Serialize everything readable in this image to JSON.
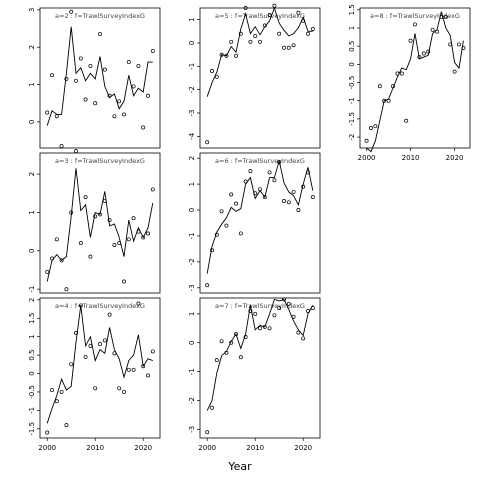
{
  "chart_data": {
    "type": "scatter",
    "xlabel": "Year",
    "x_ticks": [
      2000,
      2010,
      2020
    ],
    "panels": [
      {
        "label": "a=2 : f=TrawlSurveyIndexG",
        "yticks": [
          3,
          2,
          1,
          0
        ],
        "ylim": [
          -0.7,
          3.05
        ],
        "points_x": [
          2000,
          2001,
          2002,
          2003,
          2004,
          2005,
          2006,
          2007,
          2008,
          2009,
          2010,
          2011,
          2012,
          2013,
          2014,
          2015,
          2016,
          2017,
          2018,
          2019,
          2020,
          2021,
          2022
        ],
        "points_y": [
          0.25,
          1.25,
          0.15,
          -0.65,
          1.15,
          2.95,
          1.1,
          1.7,
          0.6,
          1.5,
          0.5,
          2.35,
          1.4,
          0.7,
          0.15,
          0.55,
          0.2,
          1.6,
          0.95,
          1.5,
          -0.15,
          0.7,
          1.9
        ],
        "fit_x": [
          2000,
          2001,
          2002,
          2003,
          2004,
          2005,
          2006,
          2007,
          2008,
          2009,
          2010,
          2011,
          2012,
          2013,
          2014,
          2015,
          2016,
          2017,
          2018,
          2019,
          2020,
          2021,
          2022
        ],
        "fit_y": [
          -0.1,
          0.3,
          0.2,
          0.2,
          1.3,
          2.55,
          1.3,
          1.45,
          1.1,
          1.3,
          1.15,
          1.75,
          0.95,
          0.65,
          0.75,
          0.35,
          0.55,
          1.25,
          0.7,
          0.9,
          0.8,
          1.6,
          1.6
        ]
      },
      {
        "label": "a=5 : f=TrawlSurveyIndexG",
        "yticks": [
          1,
          0,
          -1,
          -2,
          -3,
          -4
        ],
        "ylim": [
          -4.5,
          1.5
        ],
        "points_x": [
          2000,
          2001,
          2002,
          2003,
          2004,
          2005,
          2006,
          2007,
          2008,
          2009,
          2010,
          2011,
          2012,
          2013,
          2014,
          2015,
          2016,
          2017,
          2018,
          2019,
          2020,
          2021,
          2022
        ],
        "points_y": [
          -4.25,
          -1.2,
          -1.45,
          -0.5,
          -0.55,
          0.05,
          -0.55,
          0.4,
          1.5,
          0.05,
          0.3,
          0.05,
          0.75,
          1.2,
          1.6,
          0.4,
          -0.2,
          -0.2,
          -0.1,
          1.3,
          0.95,
          0.4,
          0.6
        ],
        "fit_x": [
          2000,
          2001,
          2002,
          2003,
          2004,
          2005,
          2006,
          2007,
          2008,
          2009,
          2010,
          2011,
          2012,
          2013,
          2014,
          2015,
          2016,
          2017,
          2018,
          2019,
          2020,
          2021,
          2022
        ],
        "fit_y": [
          -2.3,
          -1.7,
          -1.25,
          -0.5,
          -0.55,
          -0.15,
          -0.4,
          0.6,
          1.25,
          0.4,
          0.7,
          0.35,
          0.7,
          0.95,
          1.5,
          0.85,
          0.55,
          0.3,
          0.4,
          0.65,
          1.1,
          0.5,
          0.5
        ]
      },
      {
        "label": "a=8 : f=TrawlSurveyIndexG",
        "yticks": [
          1.5,
          1.0,
          0.5,
          0.0,
          -0.5,
          -1.0,
          -1.5,
          -2.0
        ],
        "ylim": [
          -2.3,
          1.55
        ],
        "points_x": [
          2000,
          2001,
          2002,
          2003,
          2004,
          2005,
          2006,
          2007,
          2008,
          2009,
          2010,
          2011,
          2012,
          2013,
          2014,
          2015,
          2016,
          2017,
          2018,
          2019,
          2020,
          2021,
          2022
        ],
        "points_y": [
          -2.1,
          -1.75,
          -1.7,
          -0.6,
          -1.0,
          -1.0,
          -0.6,
          -0.25,
          -0.25,
          -1.55,
          0.65,
          1.1,
          0.2,
          0.3,
          0.35,
          0.95,
          0.9,
          1.3,
          1.3,
          0.55,
          -0.2,
          0.55,
          0.45
        ],
        "fit_x": [
          2000,
          2001,
          2002,
          2003,
          2004,
          2005,
          2006,
          2007,
          2008,
          2009,
          2010,
          2011,
          2012,
          2013,
          2014,
          2015,
          2016,
          2017,
          2018,
          2019,
          2020,
          2021,
          2022
        ],
        "fit_y": [
          -2.3,
          -2.4,
          -2.1,
          -1.55,
          -1.0,
          -0.95,
          -0.65,
          -0.35,
          -0.1,
          -0.15,
          0.15,
          0.85,
          0.15,
          0.2,
          0.25,
          0.85,
          0.95,
          1.45,
          1.0,
          0.8,
          0.05,
          -0.1,
          0.65
        ]
      },
      {
        "label": "a=3 : f=TrawlSurveyIndexG",
        "yticks": [
          2,
          1,
          0,
          -1
        ],
        "ylim": [
          -1.1,
          2.55
        ],
        "points_x": [
          2000,
          2001,
          2002,
          2003,
          2004,
          2005,
          2006,
          2007,
          2008,
          2009,
          2010,
          2011,
          2012,
          2013,
          2014,
          2015,
          2016,
          2017,
          2018,
          2019,
          2020,
          2021,
          2022
        ],
        "points_y": [
          -0.55,
          -0.2,
          0.3,
          -0.25,
          -1.0,
          1.0,
          2.6,
          0.2,
          1.4,
          -0.15,
          0.9,
          0.95,
          1.3,
          0.8,
          0.15,
          0.2,
          -0.8,
          0.3,
          0.85,
          0.5,
          0.35,
          0.45,
          1.6
        ],
        "fit_x": [
          2000,
          2001,
          2002,
          2003,
          2004,
          2005,
          2006,
          2007,
          2008,
          2009,
          2010,
          2011,
          2012,
          2013,
          2014,
          2015,
          2016,
          2017,
          2018,
          2019,
          2020,
          2021,
          2022
        ],
        "fit_y": [
          -0.8,
          -0.25,
          -0.1,
          -0.25,
          -0.15,
          0.9,
          2.15,
          1.05,
          1.2,
          0.35,
          1.0,
          0.95,
          1.55,
          0.65,
          0.7,
          0.35,
          -0.15,
          0.8,
          0.25,
          0.6,
          0.35,
          0.6,
          1.25
        ]
      },
      {
        "label": "a=6 : f=TrawlSurveyIndexG",
        "yticks": [
          2,
          1,
          0,
          -1,
          -2,
          -3
        ],
        "ylim": [
          -3.2,
          2.2
        ],
        "points_x": [
          2000,
          2001,
          2002,
          2003,
          2004,
          2005,
          2006,
          2007,
          2008,
          2009,
          2010,
          2011,
          2012,
          2013,
          2014,
          2015,
          2016,
          2017,
          2018,
          2019,
          2020,
          2021,
          2022
        ],
        "points_y": [
          -2.9,
          -1.55,
          -0.95,
          -0.05,
          -0.6,
          0.6,
          0.25,
          -0.9,
          1.1,
          1.5,
          0.65,
          0.8,
          0.5,
          1.45,
          1.15,
          1.85,
          0.35,
          0.3,
          0.7,
          0.0,
          0.9,
          1.45,
          0.5
        ],
        "fit_x": [
          2000,
          2001,
          2002,
          2003,
          2004,
          2005,
          2006,
          2007,
          2008,
          2009,
          2010,
          2011,
          2012,
          2013,
          2014,
          2015,
          2016,
          2017,
          2018,
          2019,
          2020,
          2021,
          2022
        ],
        "fit_y": [
          -2.45,
          -1.4,
          -0.85,
          -0.55,
          -0.3,
          0.1,
          -0.05,
          0.05,
          1.0,
          1.25,
          0.45,
          0.75,
          0.5,
          1.25,
          1.25,
          1.9,
          1.05,
          0.7,
          0.55,
          0.2,
          1.0,
          1.65,
          0.75
        ]
      },
      {
        "label": "a=4 : f=TrawlSurveyIndexG",
        "yticks": [
          2.0,
          1.5,
          1.0,
          0.5,
          0.0,
          -0.5,
          -1.0,
          -1.5
        ],
        "ylim": [
          -1.75,
          2.05
        ],
        "points_x": [
          2000,
          2001,
          2002,
          2003,
          2004,
          2005,
          2006,
          2007,
          2008,
          2009,
          2010,
          2011,
          2012,
          2013,
          2014,
          2015,
          2016,
          2017,
          2018,
          2019,
          2020,
          2021,
          2022
        ],
        "points_y": [
          -1.6,
          -0.45,
          -0.75,
          -0.5,
          -1.4,
          0.25,
          1.1,
          1.85,
          0.45,
          0.75,
          -0.4,
          0.8,
          0.9,
          1.6,
          0.55,
          -0.4,
          -0.5,
          0.1,
          0.1,
          1.9,
          0.2,
          -0.05,
          0.6
        ],
        "fit_x": [
          2000,
          2001,
          2002,
          2003,
          2004,
          2005,
          2006,
          2007,
          2008,
          2009,
          2010,
          2011,
          2012,
          2013,
          2014,
          2015,
          2016,
          2017,
          2018,
          2019,
          2020,
          2021,
          2022
        ],
        "fit_y": [
          -1.35,
          -0.95,
          -0.6,
          -0.15,
          -0.45,
          -0.35,
          0.85,
          1.85,
          0.75,
          1.0,
          0.35,
          0.65,
          0.55,
          1.25,
          0.65,
          0.4,
          -0.1,
          0.35,
          0.5,
          1.05,
          0.2,
          0.4,
          0.35
        ]
      },
      {
        "label": "a=7 : f=TrawlSurveyIndexG",
        "yticks": [
          1,
          0,
          -1,
          -2,
          -3
        ],
        "ylim": [
          -3.3,
          1.55
        ],
        "points_x": [
          2000,
          2001,
          2002,
          2003,
          2004,
          2005,
          2006,
          2007,
          2008,
          2009,
          2010,
          2011,
          2012,
          2013,
          2014,
          2015,
          2016,
          2017,
          2018,
          2019,
          2020,
          2021,
          2022
        ],
        "points_y": [
          -3.1,
          -2.25,
          -0.6,
          0.05,
          -0.35,
          0.0,
          0.3,
          -0.5,
          0.2,
          1.1,
          1.0,
          0.5,
          0.55,
          0.5,
          0.95,
          1.2,
          1.5,
          1.35,
          0.9,
          0.35,
          0.15,
          1.1,
          1.2
        ],
        "fit_x": [
          2000,
          2001,
          2002,
          2003,
          2004,
          2005,
          2006,
          2007,
          2008,
          2009,
          2010,
          2011,
          2012,
          2013,
          2014,
          2015,
          2016,
          2017,
          2018,
          2019,
          2020,
          2021,
          2022
        ],
        "fit_y": [
          -2.35,
          -2.0,
          -1.05,
          -0.45,
          -0.3,
          0.05,
          0.3,
          -0.2,
          0.3,
          1.3,
          0.45,
          0.6,
          0.55,
          1.0,
          1.5,
          1.45,
          1.5,
          1.15,
          0.75,
          0.45,
          0.25,
          1.0,
          1.3
        ]
      }
    ]
  }
}
